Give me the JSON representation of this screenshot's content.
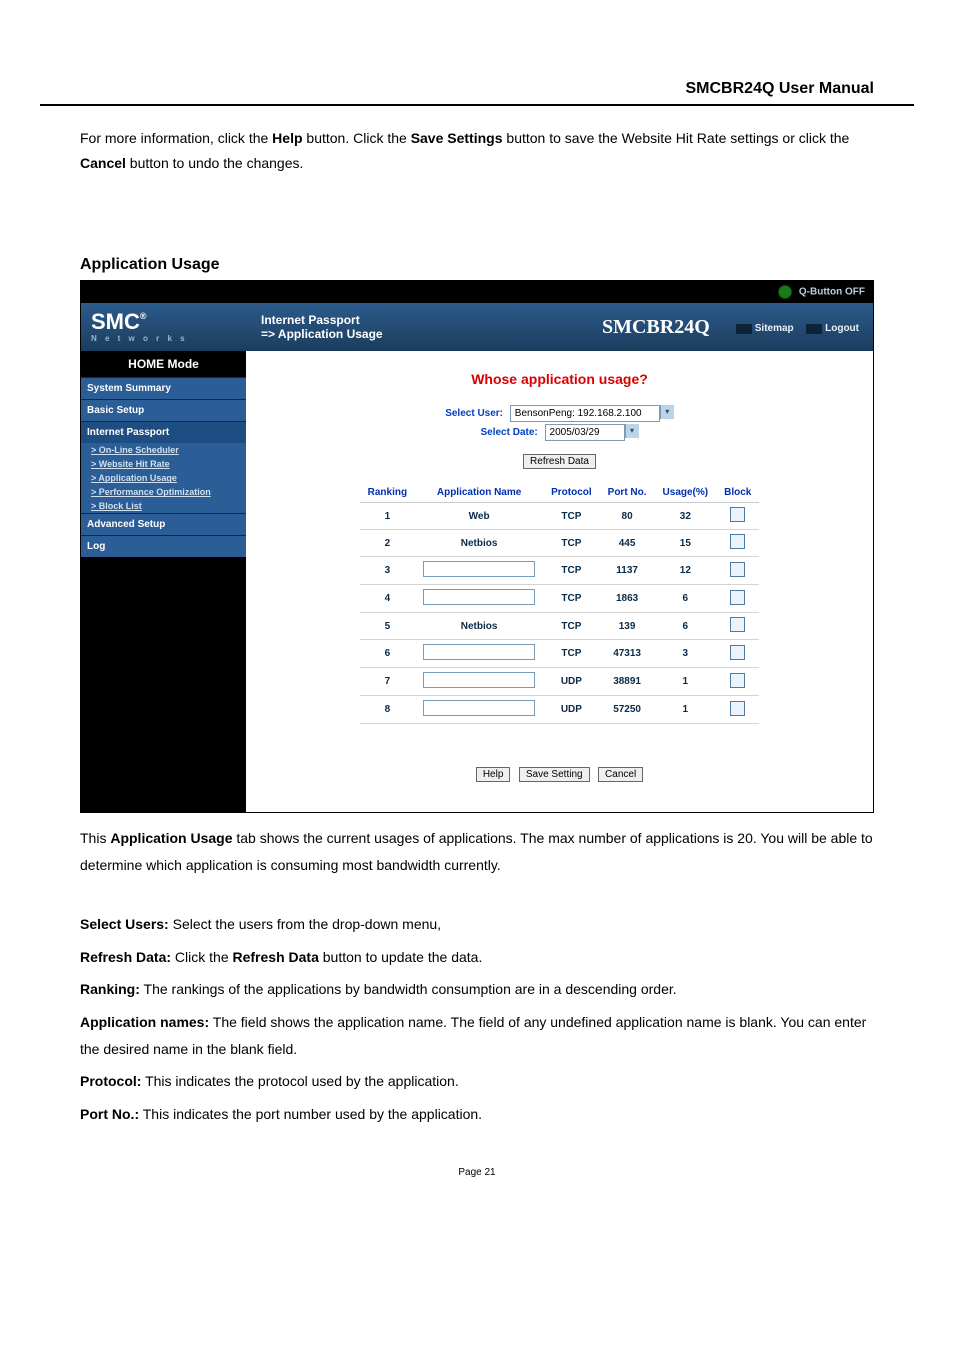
{
  "header_title": "SMCBR24Q User Manual",
  "intro_pre": "For more information, click the ",
  "intro_help": "Help",
  "intro_mid1": " button. Click the ",
  "intro_save": "Save Settings",
  "intro_mid2": " button to save the Website Hit Rate settings or click the ",
  "intro_cancel": "Cancel",
  "intro_end": " button to undo the changes.",
  "section_heading": "Application Usage",
  "qbutton": "Q-Button OFF",
  "logo_main": "SMC",
  "logo_sub": "N e t w o r k s",
  "hdr_line1": "Internet Passport",
  "hdr_line2": "=> Application Usage",
  "model": "SMCBR24Q",
  "link_sitemap": "Sitemap",
  "link_logout": "Logout",
  "side": {
    "mode": "HOME Mode",
    "items": [
      "System Summary",
      "Basic Setup",
      "Internet Passport"
    ],
    "subs": [
      "> On-Line Scheduler",
      "> Website Hit Rate",
      "> Application Usage",
      "> Performance Optimization",
      "> Block List"
    ],
    "items2": [
      "Advanced Setup",
      "Log"
    ]
  },
  "content_title": "Whose application usage?",
  "sel_user_lbl": "Select User:",
  "sel_user_val": "BensonPeng: 192.168.2.100",
  "sel_date_lbl": "Select Date:",
  "sel_date_val": "2005/03/29",
  "refresh_btn": "Refresh Data",
  "cols": [
    "Ranking",
    "Application Name",
    "Protocol",
    "Port No.",
    "Usage(%)",
    "Block"
  ],
  "rows": [
    {
      "rank": "1",
      "name": "Web",
      "proto": "TCP",
      "port": "80",
      "usage": "32"
    },
    {
      "rank": "2",
      "name": "Netbios",
      "proto": "TCP",
      "port": "445",
      "usage": "15"
    },
    {
      "rank": "3",
      "name": "",
      "proto": "TCP",
      "port": "1137",
      "usage": "12"
    },
    {
      "rank": "4",
      "name": "",
      "proto": "TCP",
      "port": "1863",
      "usage": "6"
    },
    {
      "rank": "5",
      "name": "Netbios",
      "proto": "TCP",
      "port": "139",
      "usage": "6"
    },
    {
      "rank": "6",
      "name": "",
      "proto": "TCP",
      "port": "47313",
      "usage": "3"
    },
    {
      "rank": "7",
      "name": "",
      "proto": "UDP",
      "port": "38891",
      "usage": "1"
    },
    {
      "rank": "8",
      "name": "",
      "proto": "UDP",
      "port": "57250",
      "usage": "1"
    }
  ],
  "btn_help": "Help",
  "btn_save": "Save Setting",
  "btn_cancel": "Cancel",
  "p1_a": "This ",
  "p1_b": "Application Usage",
  "p1_c": " tab shows the current usages of applications. The max number of applications is 20. You will be able to determine which application is consuming most bandwidth currently.",
  "p2_a": "Select Users:",
  "p2_b": " Select the users from the drop-down menu,",
  "p3_a": "Refresh Data:",
  "p3_b": " Click the ",
  "p3_c": "Refresh Data",
  "p3_d": " button to update the data.",
  "p4_a": "Ranking:",
  "p4_b": " The rankings of the applications by bandwidth consumption are in a descending order.",
  "p5_a": "Application names:",
  "p5_b": " The field shows the application name. The field of any undefined application name is blank. You can enter the desired name in the blank field.",
  "p6_a": "Protocol:",
  "p6_b": " This indicates the protocol used by the application.",
  "p7_a": "Port No.:",
  "p7_b": " This indicates the port number used by the application.",
  "page_num": "Page 21"
}
